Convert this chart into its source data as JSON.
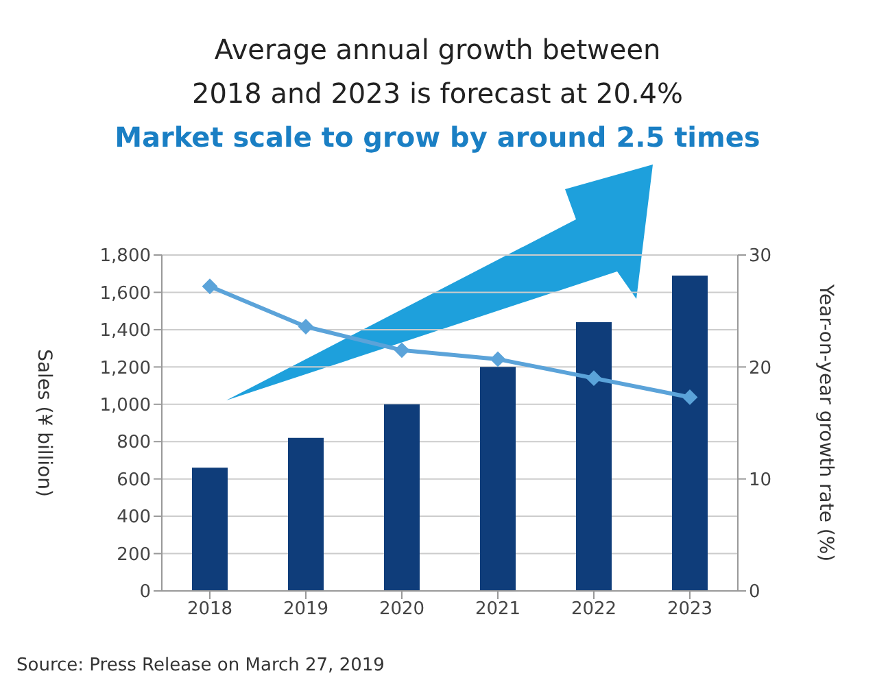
{
  "chart_data": {
    "type": "bar",
    "title": "Average annual growth between\n2018 and 2023 is forecast at 20.4%",
    "subtitle": "Market scale to grow by around 2.5 times",
    "ylabel": "Sales (¥ billion)",
    "y2label": "Year-on-year growth rate (%)",
    "categories": [
      "2018",
      "2019",
      "2020",
      "2021",
      "2022",
      "2023"
    ],
    "series": [
      {
        "color": "#0f3d7a",
        "values": [
          660,
          820,
          1000,
          1200,
          1440,
          1690
        ]
      },
      {
        "type": "line",
        "axis": "y2",
        "color": "#5ba3d9",
        "values": [
          27.2,
          23.6,
          21.5,
          20.7,
          19.0,
          17.3
        ]
      }
    ],
    "ylim": [
      0,
      1800
    ],
    "yticks": [
      0,
      200,
      400,
      600,
      800,
      {
        "value": 1000,
        "label": "1,000"
      },
      {
        "value": 1200,
        "label": "1,200"
      },
      {
        "value": 1400,
        "label": "1,400"
      },
      {
        "value": 1600,
        "label": "1,600"
      },
      {
        "value": 1800,
        "label": "1,800"
      }
    ],
    "y2lim": [
      0,
      30
    ],
    "y2ticks": [
      0,
      10,
      20,
      30
    ],
    "grid": "y",
    "marker": "diamond",
    "legend": false,
    "annotations": [
      "Source: Press Release on March 27, 2019"
    ]
  }
}
